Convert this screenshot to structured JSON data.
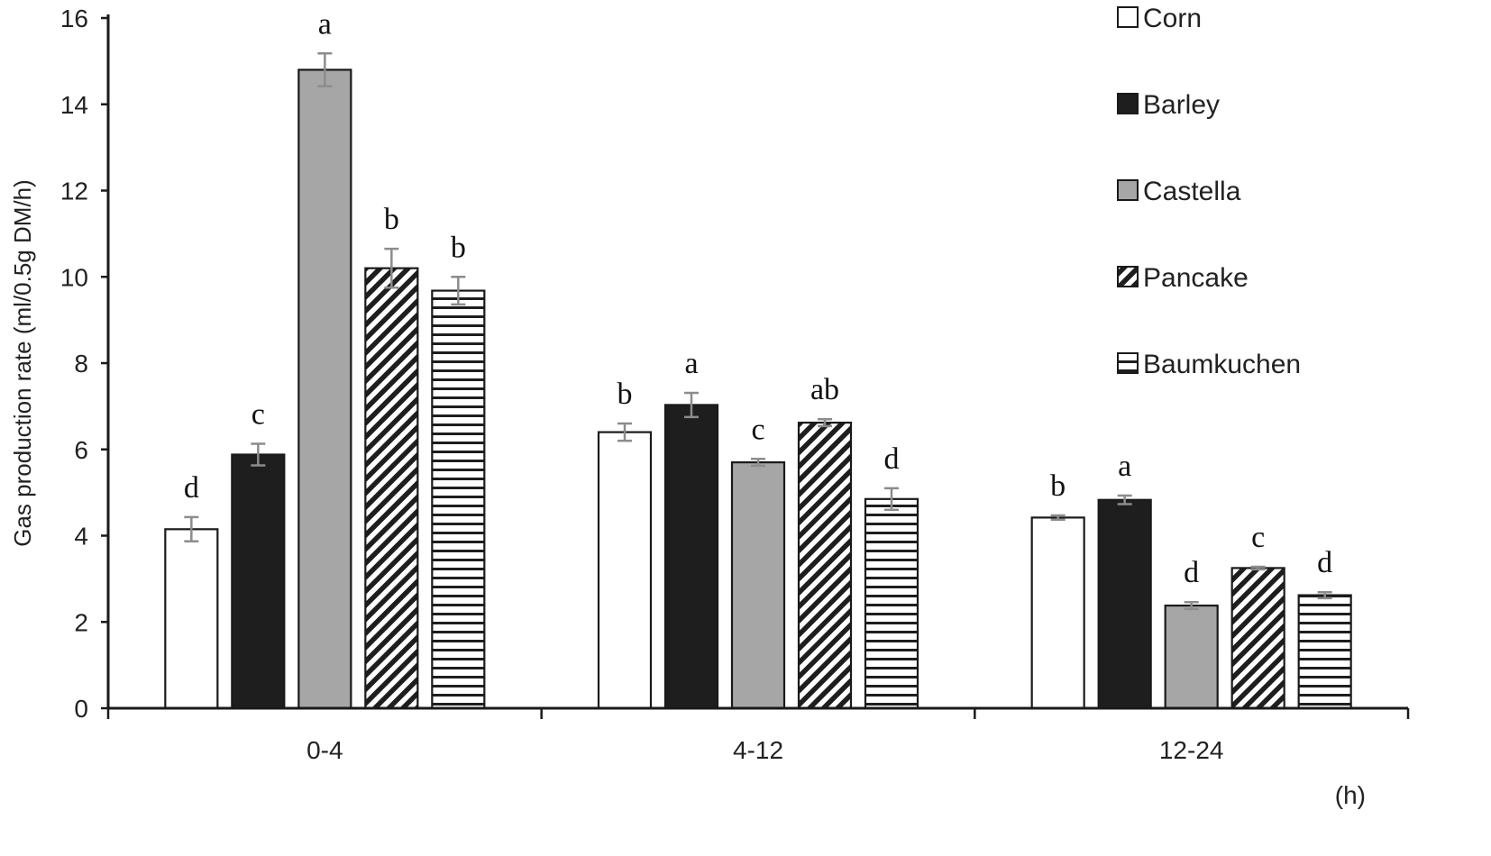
{
  "chart_data": {
    "type": "bar",
    "categories": [
      "0-4",
      "4-12",
      "12-24"
    ],
    "x_unit_label": "(h)",
    "ylabel": "Gas production rate (ml/0.5g DM/h)",
    "ylim": [
      0,
      16
    ],
    "yticks": [
      "0",
      "2",
      "4",
      "6",
      "8",
      "10",
      "12",
      "14",
      "16"
    ],
    "legend_placement": "top-right",
    "series": [
      {
        "name": "Corn",
        "pattern": "white",
        "values": [
          4.15,
          6.4,
          4.42
        ],
        "errors": [
          0.28,
          0.2,
          0.05
        ],
        "letters": [
          "d",
          "b",
          "b"
        ]
      },
      {
        "name": "Barley",
        "pattern": "black",
        "values": [
          5.88,
          7.03,
          4.83
        ],
        "errors": [
          0.25,
          0.28,
          0.1
        ],
        "letters": [
          "c",
          "a",
          "a"
        ]
      },
      {
        "name": "Castella",
        "pattern": "gray",
        "values": [
          14.8,
          5.7,
          2.38
        ],
        "errors": [
          0.38,
          0.08,
          0.08
        ],
        "letters": [
          "a",
          "c",
          "d"
        ]
      },
      {
        "name": "Pancake",
        "pattern": "diagonal",
        "values": [
          10.2,
          6.62,
          3.25
        ],
        "errors": [
          0.45,
          0.08,
          0.03
        ],
        "letters": [
          "b",
          "ab",
          "c"
        ]
      },
      {
        "name": "Baumkuchen",
        "pattern": "horizontal",
        "values": [
          9.68,
          4.85,
          2.62
        ],
        "errors": [
          0.32,
          0.25,
          0.07
        ],
        "letters": [
          "b",
          "d",
          "d"
        ]
      }
    ],
    "colors": {
      "black_bar": "#1e1e1e",
      "gray_bar": "#a6a6a6",
      "error_bar": "#8c8c8c",
      "axis": "#1a1a1a"
    }
  }
}
